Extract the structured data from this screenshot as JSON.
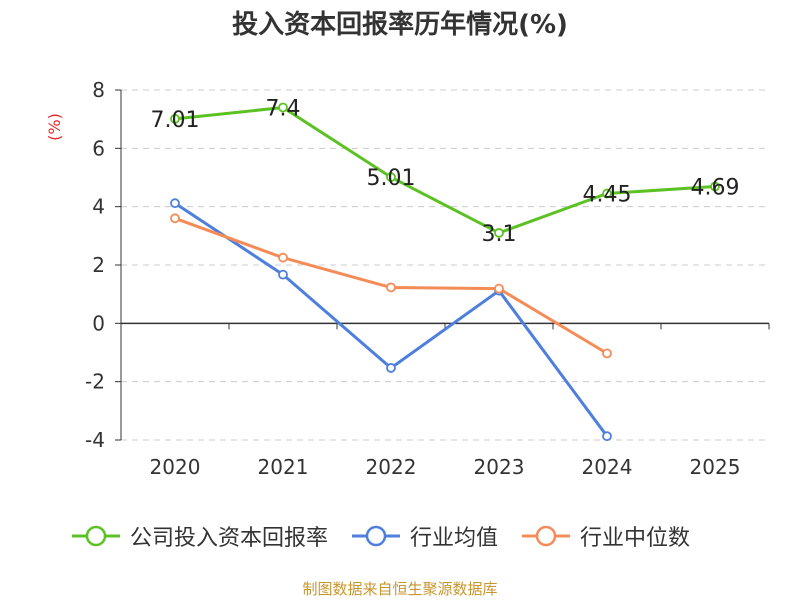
{
  "title": "投入资本回报率历年情况(%)",
  "source": "制图数据来自恒生聚源数据库",
  "chart_data": {
    "type": "line",
    "title": "投入资本回报率历年情况(%)",
    "ylabel": "(%)",
    "xlabel": "",
    "categories": [
      "2020",
      "2021",
      "2022",
      "2023",
      "2024",
      "2025"
    ],
    "ylim": [
      -4,
      8
    ],
    "yticks": [
      "8",
      "6",
      "4",
      "2",
      "0",
      "-2",
      "-4"
    ],
    "grid": true,
    "legend_position": "bottom",
    "series": [
      {
        "name": "公司投入资本回报率",
        "color": "#5cc223",
        "values": [
          7.01,
          7.4,
          5.01,
          3.1,
          4.45,
          4.69
        ],
        "labels": [
          "7.01",
          "7.4",
          "5.01",
          "3.1",
          "4.45",
          "4.69"
        ]
      },
      {
        "name": "行业均值",
        "color": "#4f7fdd",
        "values": [
          4.12,
          1.67,
          -1.53,
          1.12,
          -3.87,
          null
        ]
      },
      {
        "name": "行业中位数",
        "color": "#f58c58",
        "values": [
          3.6,
          2.25,
          1.23,
          1.19,
          -1.03,
          null
        ]
      }
    ]
  }
}
